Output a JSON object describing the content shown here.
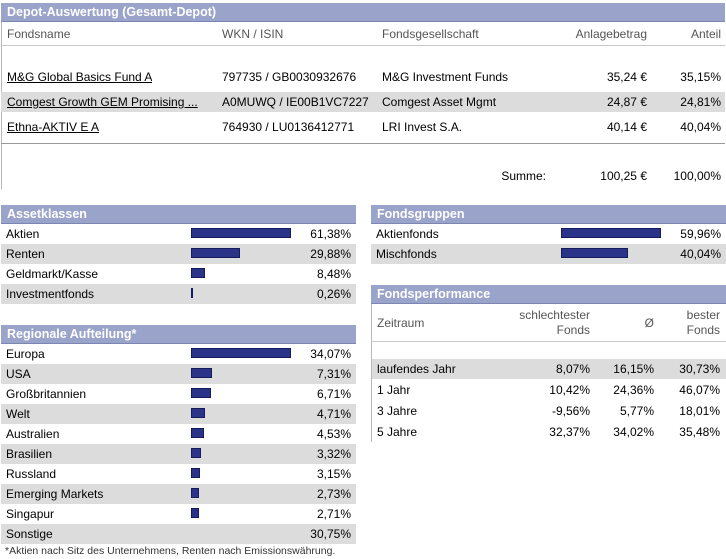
{
  "depot": {
    "title": "Depot-Auswertung (Gesamt-Depot)",
    "columns": [
      "Fondsname",
      "WKN / ISIN",
      "Fondsgesellschaft",
      "Anlagebetrag",
      "Anteil"
    ],
    "funds": [
      {
        "name": "M&G Global Basics Fund A",
        "wkn": "797735 / GB0030932676",
        "company": "M&G Investment Funds",
        "amount": "35,24 €",
        "share": "35,15%"
      },
      {
        "name": "Comgest Growth GEM Promising ...",
        "wkn": "A0MUWQ / IE00B1VC7227",
        "company": "Comgest Asset Mgmt",
        "amount": "24,87 €",
        "share": "24,81%"
      },
      {
        "name": "Ethna-AKTIV E A",
        "wkn": "764930 / LU0136412771",
        "company": "LRI Invest S.A.",
        "amount": "40,14 €",
        "share": "40,04%"
      }
    ],
    "sum_label": "Summe:",
    "sum_amount": "100,25 €",
    "sum_share": "100,00%"
  },
  "assetklassen": {
    "title": "Assetklassen",
    "items": [
      {
        "label": "Aktien",
        "value": "61,38%",
        "pct": 61.38
      },
      {
        "label": "Renten",
        "value": "29,88%",
        "pct": 29.88
      },
      {
        "label": "Geldmarkt/Kasse",
        "value": "8,48%",
        "pct": 8.48
      },
      {
        "label": "Investmentfonds",
        "value": "0,26%",
        "pct": 0.26
      }
    ]
  },
  "regional": {
    "title": "Regionale Aufteilung*",
    "items": [
      {
        "label": "Europa",
        "value": "34,07%",
        "pct": 34.07
      },
      {
        "label": "USA",
        "value": "7,31%",
        "pct": 7.31
      },
      {
        "label": "Großbritannien",
        "value": "6,71%",
        "pct": 6.71
      },
      {
        "label": "Welt",
        "value": "4,71%",
        "pct": 4.71
      },
      {
        "label": "Australien",
        "value": "4,53%",
        "pct": 4.53
      },
      {
        "label": "Brasilien",
        "value": "3,32%",
        "pct": 3.32
      },
      {
        "label": "Russland",
        "value": "3,15%",
        "pct": 3.15
      },
      {
        "label": "Emerging Markets",
        "value": "2,73%",
        "pct": 2.73
      },
      {
        "label": "Singapur",
        "value": "2,71%",
        "pct": 2.71
      },
      {
        "label": "Sonstige",
        "value": "30,75%",
        "pct": null
      }
    ],
    "footnote": "*Aktien nach Sitz des Unternehmens, Renten nach Emissionswährung."
  },
  "fondsgruppen": {
    "title": "Fondsgruppen",
    "items": [
      {
        "label": "Aktienfonds",
        "value": "59,96%",
        "pct": 59.96
      },
      {
        "label": "Mischfonds",
        "value": "40,04%",
        "pct": 40.04
      }
    ]
  },
  "performance": {
    "title": "Fondsperformance",
    "col_zeitraum": "Zeitraum",
    "col_worst_1": "schlechtester",
    "col_worst_2": "Fonds",
    "col_avg": "Ø",
    "col_best_1": "bester",
    "col_best_2": "Fonds",
    "rows": [
      {
        "period": "laufendes Jahr",
        "worst": "8,07%",
        "avg": "16,15%",
        "best": "30,73%"
      },
      {
        "period": "1 Jahr",
        "worst": "10,42%",
        "avg": "24,36%",
        "best": "46,07%"
      },
      {
        "period": "3 Jahre",
        "worst": "-9,56%",
        "avg": "5,77%",
        "best": "18,01%"
      },
      {
        "period": "5 Jahre",
        "worst": "32,37%",
        "avg": "34,02%",
        "best": "35,48%"
      }
    ]
  }
}
